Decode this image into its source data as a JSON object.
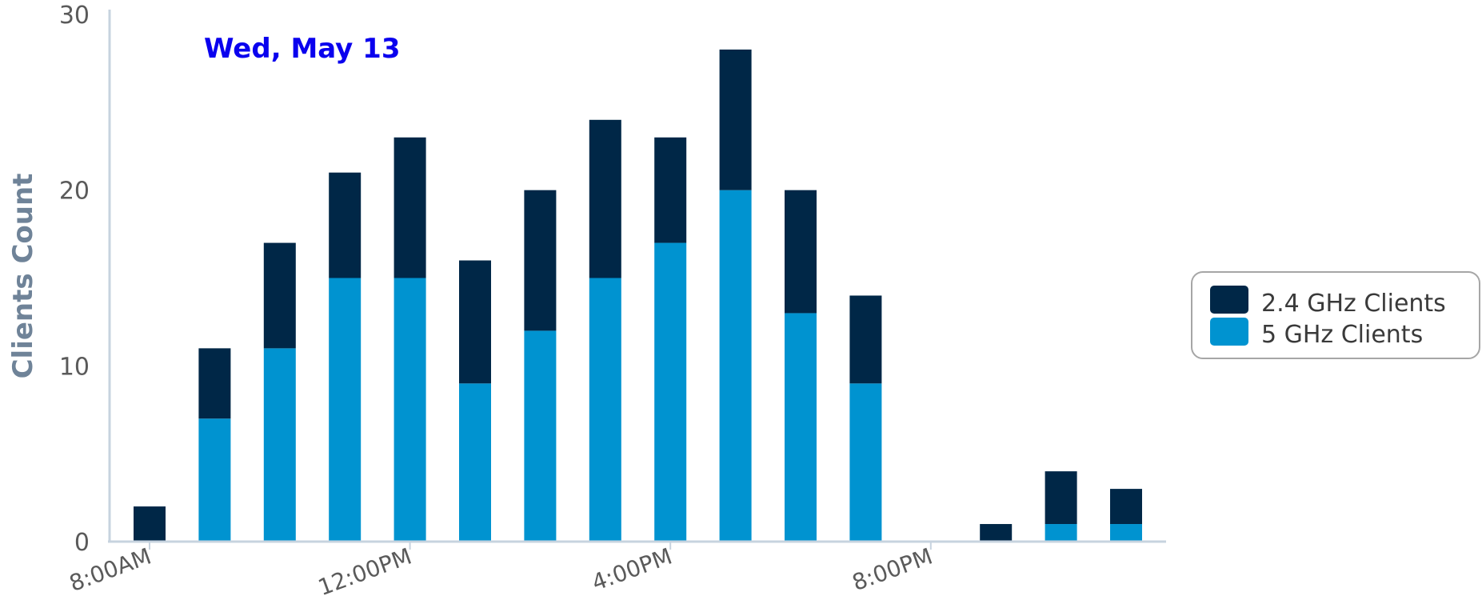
{
  "chart_data": {
    "type": "bar",
    "stacked": true,
    "annotation": "Wed, May 13",
    "ylabel": "Clients Count",
    "xlabel": "",
    "ylim": [
      0,
      30
    ],
    "yticks": [
      0,
      10,
      20,
      30
    ],
    "hours": [
      8,
      9,
      10,
      11,
      12,
      13,
      14,
      15,
      16,
      17,
      18,
      19,
      20,
      21,
      22,
      23
    ],
    "xticks": [
      {
        "hour": 8,
        "label": "8:00AM"
      },
      {
        "hour": 12,
        "label": "12:00PM"
      },
      {
        "hour": 16,
        "label": "4:00PM"
      },
      {
        "hour": 20,
        "label": "8:00PM"
      }
    ],
    "series": [
      {
        "name": "5 GHz Clients",
        "color": "#0093d0",
        "values": [
          0,
          7,
          11,
          15,
          15,
          9,
          12,
          15,
          17,
          20,
          13,
          9,
          0,
          0,
          1,
          1
        ]
      },
      {
        "name": "2.4 GHz Clients",
        "color": "#002747",
        "values": [
          2,
          4,
          6,
          6,
          8,
          7,
          8,
          9,
          6,
          8,
          7,
          5,
          0,
          1,
          3,
          2
        ]
      }
    ],
    "legend": {
      "position": "right",
      "items": [
        "2.4 GHz Clients",
        "5 GHz Clients"
      ]
    },
    "grid": false,
    "annotation_color": "#0a00ee",
    "axis_color": "#c7d3df",
    "ylabel_color": "#6f8398",
    "tick_color": "#5a5a5a"
  }
}
